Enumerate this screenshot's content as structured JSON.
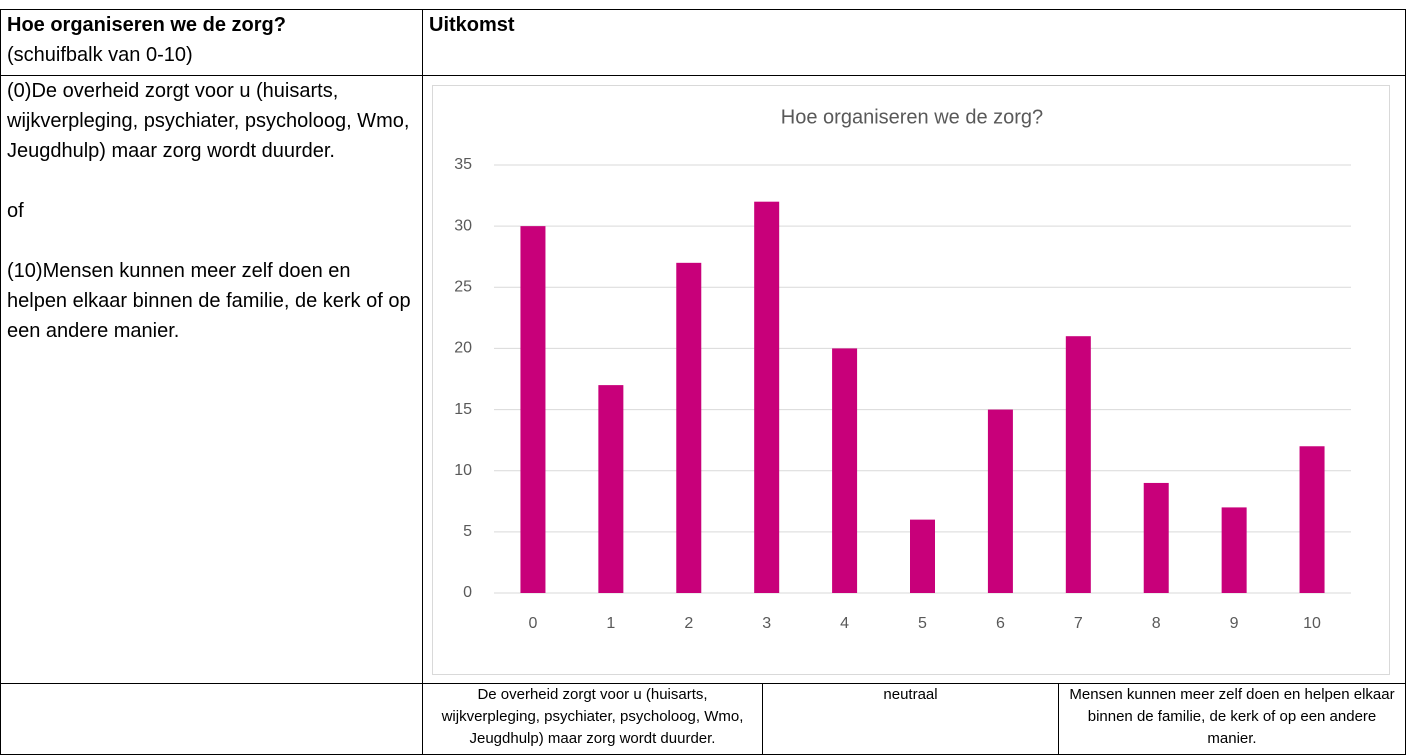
{
  "table": {
    "header": {
      "question": "Hoe organiseren we de zorg?",
      "subtitle": "(schuifbalk van 0-10)",
      "outcome": "Uitkomst"
    },
    "options": [
      "(0)De overheid zorgt voor u (huisarts, wijkverpleging, psychiater, psycholoog, Wmo, Jeugdhulp) maar zorg wordt duurder.",
      "of",
      "(10)Mensen kunnen meer zelf doen en helpen elkaar binnen de familie, de kerk of op een andere manier."
    ],
    "scale_labels": [
      "De overheid zorgt voor u (huisarts, wijkverpleging, psychiater, psycholoog, Wmo, Jeugdhulp) maar zorg wordt duurder.",
      "neutraal",
      "Mensen kunnen meer zelf doen en helpen elkaar binnen de familie, de kerk of op een andere manier."
    ]
  },
  "chart_data": {
    "type": "bar",
    "title": "Hoe organiseren we de zorg?",
    "categories": [
      "0",
      "1",
      "2",
      "3",
      "4",
      "5",
      "6",
      "7",
      "8",
      "9",
      "10"
    ],
    "values": [
      30,
      17,
      27,
      32,
      20,
      6,
      15,
      21,
      9,
      7,
      12
    ],
    "color": "#c8007a",
    "ylim": [
      0,
      35
    ],
    "yticks": [
      0,
      5,
      10,
      15,
      20,
      25,
      30,
      35
    ],
    "grid": true
  }
}
